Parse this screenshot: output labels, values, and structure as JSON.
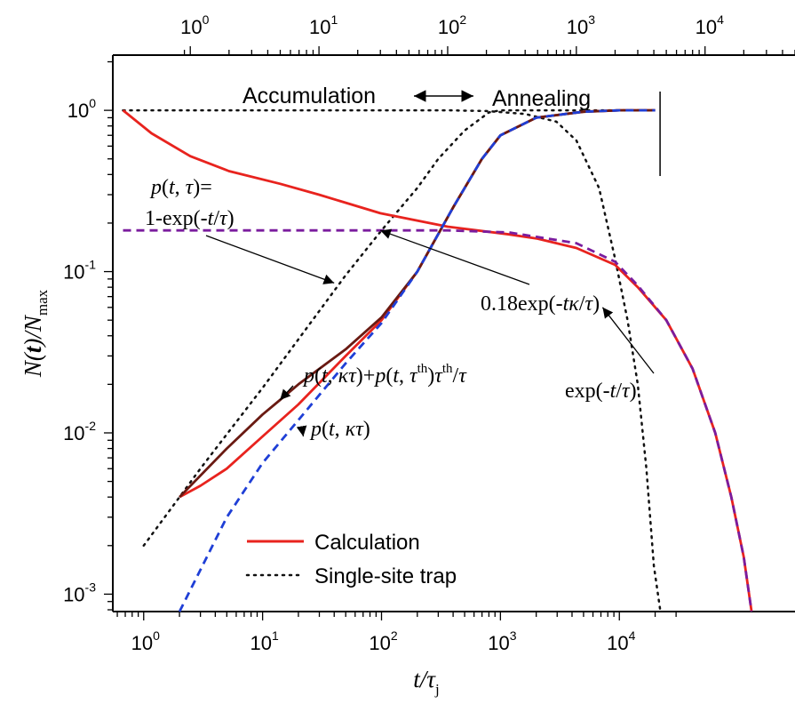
{
  "chart_data": {
    "type": "line",
    "scale": {
      "x": "log",
      "y": "log"
    },
    "xlim": [
      0.55,
      300000
    ],
    "ylim": [
      0.00078,
      2.2
    ],
    "top_xlim": [
      0.25,
      50000
    ],
    "grid": false,
    "legend_position": "bottom-left",
    "axis_labels": {
      "x": {
        "main": "t/τ",
        "sub": "j"
      },
      "y": {
        "n": "N(",
        "t": "t",
        "close": ")/N",
        "sub": "max"
      }
    },
    "x_ticks": [
      {
        "base": "10",
        "exp": "0",
        "value": 1
      },
      {
        "base": "10",
        "exp": "1",
        "value": 10
      },
      {
        "base": "10",
        "exp": "2",
        "value": 100
      },
      {
        "base": "10",
        "exp": "3",
        "value": 1000
      },
      {
        "base": "10",
        "exp": "4",
        "value": 10000
      }
    ],
    "top_x_ticks": [
      {
        "base": "10",
        "exp": "0",
        "value": 1
      },
      {
        "base": "10",
        "exp": "1",
        "value": 10
      },
      {
        "base": "10",
        "exp": "2",
        "value": 100
      },
      {
        "base": "10",
        "exp": "3",
        "value": 1000
      },
      {
        "base": "10",
        "exp": "4",
        "value": 10000
      }
    ],
    "y_ticks": [
      {
        "base": "10",
        "exp": "0",
        "value": 1
      },
      {
        "base": "10",
        "exp": "-1",
        "value": 0.1
      },
      {
        "base": "10",
        "exp": "-2",
        "value": 0.01
      },
      {
        "base": "10",
        "exp": "-3",
        "value": 0.001
      }
    ],
    "section_labels": {
      "left": "Accumulation",
      "right": "Annealing"
    },
    "divider_x": 22000,
    "series": [
      {
        "name": "Calculation",
        "color": "#e8231e",
        "style": "solid",
        "axis": "bottom",
        "points": [
          [
            2,
            0.004
          ],
          [
            3,
            0.0047
          ],
          [
            5,
            0.006
          ],
          [
            10,
            0.0095
          ],
          [
            20,
            0.015
          ],
          [
            50,
            0.03
          ],
          [
            100,
            0.05
          ],
          [
            200,
            0.1
          ],
          [
            400,
            0.25
          ],
          [
            700,
            0.5
          ],
          [
            1000,
            0.7
          ],
          [
            2000,
            0.9
          ],
          [
            5000,
            0.98
          ],
          [
            10000,
            1.0
          ],
          [
            20000,
            1.0
          ]
        ]
      },
      {
        "name": "p(t,κτ)+p(t,τth)τth/τ",
        "color": "#6a1a12",
        "style": "solid",
        "axis": "bottom",
        "points": [
          [
            2,
            0.004
          ],
          [
            5,
            0.008
          ],
          [
            10,
            0.013
          ],
          [
            14,
            0.016
          ],
          [
            20,
            0.02
          ],
          [
            50,
            0.033
          ],
          [
            100,
            0.052
          ],
          [
            200,
            0.1
          ],
          [
            400,
            0.25
          ],
          [
            700,
            0.5
          ],
          [
            1000,
            0.7
          ],
          [
            2000,
            0.9
          ],
          [
            5000,
            0.98
          ],
          [
            10000,
            1.0
          ],
          [
            20000,
            1.0
          ]
        ]
      },
      {
        "name": "p(t,κτ)",
        "color": "#1f3fd6",
        "style": "dashed",
        "axis": "bottom",
        "points": [
          [
            2,
            0.00078
          ],
          [
            5,
            0.003
          ],
          [
            10,
            0.0065
          ],
          [
            20,
            0.012
          ],
          [
            50,
            0.027
          ],
          [
            100,
            0.048
          ],
          [
            200,
            0.1
          ],
          [
            400,
            0.25
          ],
          [
            700,
            0.5
          ],
          [
            1000,
            0.7
          ],
          [
            2000,
            0.9
          ],
          [
            5000,
            0.98
          ],
          [
            10000,
            1.0
          ],
          [
            20000,
            1.0
          ]
        ]
      },
      {
        "name": "Single-site trap",
        "color": "#111111",
        "style": "dotted",
        "axis": "bottom",
        "points": [
          [
            1,
            0.002
          ],
          [
            2,
            0.004
          ],
          [
            3,
            0.006
          ],
          [
            5,
            0.0098
          ],
          [
            10,
            0.019
          ],
          [
            20,
            0.038
          ],
          [
            50,
            0.095
          ],
          [
            100,
            0.18
          ],
          [
            200,
            0.33
          ],
          [
            300,
            0.5
          ],
          [
            500,
            0.75
          ],
          [
            800,
            0.97
          ],
          [
            1000,
            1.0
          ],
          [
            20000,
            1.0
          ]
        ]
      },
      {
        "name": "Calculation (annealing)",
        "color": "#e8231e",
        "style": "solid",
        "axis": "top",
        "points": [
          [
            0.3,
            1.0
          ],
          [
            0.5,
            0.72
          ],
          [
            1,
            0.52
          ],
          [
            2,
            0.42
          ],
          [
            5,
            0.35
          ],
          [
            10,
            0.3
          ],
          [
            30,
            0.23
          ],
          [
            100,
            0.19
          ],
          [
            300,
            0.17
          ],
          [
            500,
            0.16
          ],
          [
            1000,
            0.14
          ],
          [
            2000,
            0.11
          ],
          [
            3000,
            0.08
          ],
          [
            5000,
            0.05
          ],
          [
            8000,
            0.025
          ],
          [
            12000,
            0.01
          ],
          [
            16000,
            0.004
          ],
          [
            20000,
            0.0017
          ],
          [
            23000,
            0.00078
          ]
        ]
      },
      {
        "name": "0.18exp(-tκ/τ)",
        "color": "#7a1c9e",
        "style": "dashed",
        "axis": "top",
        "points": [
          [
            0.3,
            0.18
          ],
          [
            100,
            0.18
          ],
          [
            300,
            0.175
          ],
          [
            1000,
            0.15
          ],
          [
            2000,
            0.115
          ],
          [
            3000,
            0.082
          ],
          [
            5000,
            0.05
          ],
          [
            8000,
            0.025
          ],
          [
            12000,
            0.01
          ],
          [
            16000,
            0.004
          ],
          [
            20000,
            0.0017
          ],
          [
            23000,
            0.00078
          ]
        ]
      },
      {
        "name": "exp(-t/τ) single-site",
        "color": "#111111",
        "style": "dotted",
        "axis": "top",
        "points": [
          [
            0.3,
            1.0
          ],
          [
            100,
            1.0
          ],
          [
            200,
            0.99
          ],
          [
            400,
            0.95
          ],
          [
            700,
            0.85
          ],
          [
            1000,
            0.65
          ],
          [
            1500,
            0.33
          ],
          [
            2000,
            0.12
          ],
          [
            2500,
            0.05
          ],
          [
            3000,
            0.02
          ],
          [
            3500,
            0.006
          ],
          [
            4000,
            0.0015
          ],
          [
            4500,
            0.00078
          ]
        ]
      }
    ],
    "legend": [
      {
        "label": "Calculation",
        "color": "#e8231e",
        "style": "solid"
      },
      {
        "label": "Single-site trap",
        "color": "#111111",
        "style": "dotted"
      }
    ],
    "annotations": [
      {
        "id": "p-single",
        "lines": [
          "p(t,τ)=",
          "1-exp(-t/τ)"
        ],
        "arrow_to": {
          "axis": "bottom",
          "x": 40,
          "y": 0.085
        }
      },
      {
        "id": "p-combined",
        "text": "p(t,κτ)+p(t,τth)τth/τ",
        "arrow_to": {
          "axis": "bottom",
          "x": 14,
          "y": 0.016
        }
      },
      {
        "id": "p-kappa",
        "text": "p(t,κτ)",
        "arrow_to": {
          "axis": "bottom",
          "x": 22,
          "y": 0.0095
        }
      },
      {
        "id": "exp-kappa",
        "text": "0.18exp(-tκ/τ)",
        "arrow_to": {
          "axis": "top",
          "x": 30,
          "y": 0.18
        }
      },
      {
        "id": "exp-single",
        "text": "exp(-t/τ)",
        "arrow_to": {
          "axis": "top",
          "x": 1600,
          "y": 0.06
        }
      }
    ]
  }
}
